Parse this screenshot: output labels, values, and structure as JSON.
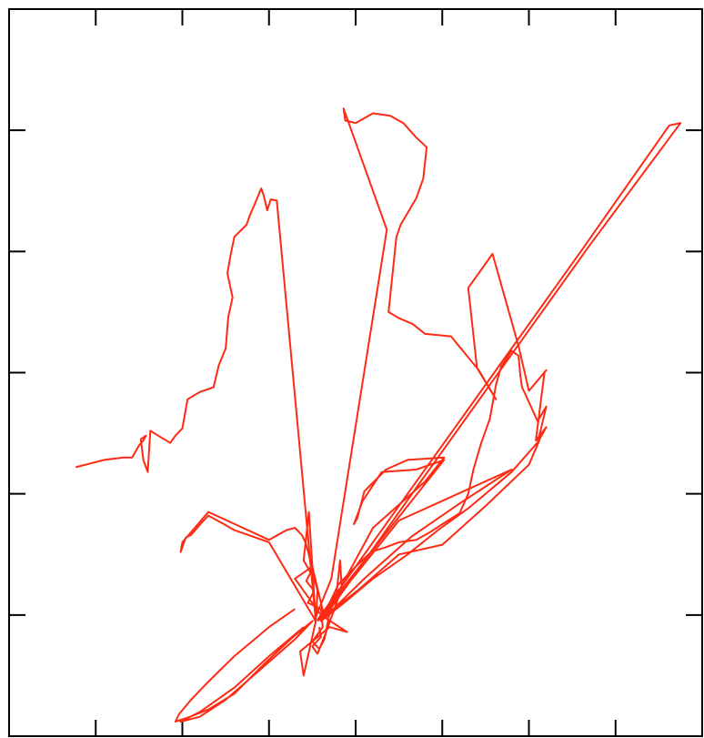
{
  "chart_data": {
    "type": "line",
    "title": "",
    "xlabel": "",
    "ylabel": "",
    "xlim": [
      0,
      8
    ],
    "ylim": [
      0,
      6
    ],
    "xticks": [
      1,
      2,
      3,
      4,
      5,
      6,
      7
    ],
    "yticks": [
      1,
      2,
      3,
      4,
      5
    ],
    "tick_labels_shown": false,
    "grid": false,
    "line_color": "#ff2a14",
    "series": [
      {
        "values_xy": [
          [
            0.77,
            2.22
          ],
          [
            1.1,
            2.28
          ],
          [
            1.32,
            2.3
          ],
          [
            1.42,
            2.3
          ],
          [
            1.5,
            2.4
          ],
          [
            1.55,
            2.44
          ],
          [
            1.58,
            2.48
          ],
          [
            1.52,
            2.45
          ],
          [
            1.55,
            2.28
          ],
          [
            1.6,
            2.18
          ],
          [
            1.63,
            2.52
          ],
          [
            1.72,
            2.48
          ],
          [
            1.86,
            2.42
          ],
          [
            1.92,
            2.48
          ],
          [
            2.0,
            2.54
          ],
          [
            2.06,
            2.78
          ],
          [
            2.2,
            2.84
          ],
          [
            2.36,
            2.88
          ],
          [
            2.42,
            3.06
          ],
          [
            2.5,
            3.2
          ],
          [
            2.53,
            3.46
          ],
          [
            2.58,
            3.62
          ],
          [
            2.52,
            3.82
          ],
          [
            2.56,
            3.98
          ],
          [
            2.6,
            4.12
          ],
          [
            2.74,
            4.22
          ],
          [
            2.78,
            4.3
          ],
          [
            2.84,
            4.4
          ],
          [
            2.91,
            4.52
          ],
          [
            2.94,
            4.46
          ],
          [
            2.98,
            4.34
          ],
          [
            3.02,
            4.43
          ],
          [
            3.09,
            4.42
          ],
          [
            3.54,
            0.95
          ]
        ]
      },
      {
        "values_xy": [
          [
            3.54,
            0.95
          ],
          [
            3.46,
            1.85
          ],
          [
            3.4,
            1.45
          ],
          [
            3.48,
            1.35
          ],
          [
            3.43,
            1.28
          ],
          [
            3.52,
            1.2
          ],
          [
            3.45,
            1.1
          ],
          [
            3.6,
            1.05
          ],
          [
            3.62,
            0.9
          ],
          [
            3.5,
            0.78
          ],
          [
            3.58,
            0.72
          ],
          [
            3.64,
            0.8
          ],
          [
            3.7,
            1.02
          ],
          [
            3.78,
            1.18
          ],
          [
            3.82,
            1.45
          ],
          [
            3.84,
            1.22
          ],
          [
            3.72,
            0.98
          ],
          [
            3.66,
            0.86
          ],
          [
            3.56,
            0.68
          ],
          [
            3.5,
            0.74
          ],
          [
            3.6,
            0.82
          ],
          [
            3.58,
            0.9
          ]
        ]
      },
      {
        "values_xy": [
          [
            3.3,
            1.05
          ],
          [
            3.0,
            0.9
          ],
          [
            2.6,
            0.66
          ],
          [
            2.3,
            0.45
          ],
          [
            2.1,
            0.3
          ],
          [
            1.96,
            0.18
          ],
          [
            1.92,
            0.12
          ],
          [
            2.05,
            0.15
          ],
          [
            2.3,
            0.22
          ],
          [
            2.6,
            0.35
          ],
          [
            2.95,
            0.6
          ],
          [
            3.28,
            0.82
          ],
          [
            3.5,
            0.95
          ],
          [
            3.3,
            0.8
          ],
          [
            2.9,
            0.55
          ],
          [
            2.5,
            0.3
          ],
          [
            2.2,
            0.16
          ],
          [
            1.98,
            0.12
          ],
          [
            2.2,
            0.2
          ],
          [
            2.6,
            0.4
          ],
          [
            3.0,
            0.66
          ],
          [
            3.4,
            0.9
          ]
        ]
      },
      {
        "values_xy": [
          [
            3.6,
            0.95
          ],
          [
            3.8,
            1.25
          ],
          [
            4.0,
            1.4
          ],
          [
            4.18,
            1.52
          ],
          [
            4.35,
            1.56
          ],
          [
            4.5,
            1.6
          ],
          [
            4.7,
            1.62
          ],
          [
            4.85,
            1.68
          ],
          [
            5.0,
            1.75
          ],
          [
            5.2,
            1.84
          ],
          [
            5.3,
            2.0
          ],
          [
            5.36,
            2.2
          ],
          [
            5.45,
            2.42
          ],
          [
            5.55,
            2.62
          ],
          [
            5.62,
            2.9
          ],
          [
            5.68,
            3.05
          ],
          [
            5.8,
            3.18
          ],
          [
            5.88,
            3.14
          ],
          [
            5.9,
            2.98
          ],
          [
            5.92,
            2.88
          ],
          [
            5.96,
            2.82
          ],
          [
            6.1,
            2.6
          ],
          [
            6.2,
            2.72
          ],
          [
            6.1,
            2.42
          ],
          [
            6.2,
            2.55
          ],
          [
            6.08,
            2.44
          ],
          [
            6.18,
            3.0
          ],
          [
            6.2,
            3.02
          ],
          [
            6.0,
            2.85
          ],
          [
            5.88,
            3.22
          ],
          [
            5.58,
            3.98
          ],
          [
            5.3,
            3.7
          ],
          [
            5.4,
            3.04
          ],
          [
            5.62,
            2.78
          ],
          [
            5.42,
            3.02
          ],
          [
            5.1,
            3.3
          ],
          [
            4.8,
            3.32
          ],
          [
            4.66,
            3.4
          ],
          [
            4.5,
            3.45
          ],
          [
            4.38,
            3.5
          ],
          [
            4.47,
            4.12
          ],
          [
            4.52,
            4.22
          ],
          [
            4.7,
            4.44
          ],
          [
            4.78,
            4.6
          ],
          [
            4.82,
            4.86
          ],
          [
            4.7,
            4.94
          ],
          [
            4.55,
            5.06
          ],
          [
            4.4,
            5.12
          ],
          [
            4.2,
            5.14
          ],
          [
            4.0,
            5.06
          ],
          [
            3.88,
            5.08
          ],
          [
            3.86,
            5.18
          ],
          [
            4.36,
            4.18
          ],
          [
            3.72,
            1.3
          ],
          [
            3.52,
            0.95
          ]
        ]
      },
      {
        "values_xy": [
          [
            3.56,
            0.95
          ],
          [
            4.02,
            1.2
          ],
          [
            4.5,
            1.5
          ],
          [
            5.0,
            1.58
          ],
          [
            5.5,
            1.9
          ],
          [
            6.0,
            2.24
          ],
          [
            6.12,
            2.44
          ],
          [
            5.8,
            2.18
          ],
          [
            5.3,
            1.88
          ],
          [
            4.95,
            1.7
          ],
          [
            4.6,
            1.5
          ],
          [
            4.2,
            1.3
          ],
          [
            3.9,
            1.12
          ],
          [
            3.6,
            0.95
          ],
          [
            4.1,
            1.3
          ],
          [
            4.65,
            1.65
          ],
          [
            5.2,
            1.92
          ],
          [
            5.8,
            2.2
          ],
          [
            4.5,
            1.78
          ],
          [
            3.58,
            0.96
          ]
        ]
      },
      {
        "values_xy": [
          [
            3.56,
            0.96
          ],
          [
            4.6,
            2.0
          ],
          [
            5.6,
            3.0
          ],
          [
            6.6,
            4.0
          ],
          [
            7.62,
            5.04
          ],
          [
            7.75,
            5.06
          ],
          [
            6.7,
            4.05
          ],
          [
            5.7,
            3.05
          ],
          [
            4.7,
            2.05
          ],
          [
            3.64,
            0.98
          ],
          [
            4.2,
            1.72
          ],
          [
            4.8,
            2.1
          ],
          [
            5.02,
            2.3
          ],
          [
            4.6,
            2.28
          ],
          [
            4.35,
            2.2
          ],
          [
            4.1,
            2.02
          ],
          [
            4.02,
            1.8
          ],
          [
            3.98,
            1.75
          ],
          [
            4.08,
            1.94
          ],
          [
            4.3,
            2.18
          ],
          [
            4.7,
            2.2
          ],
          [
            5.02,
            2.28
          ],
          [
            3.56,
            0.96
          ]
        ]
      },
      {
        "values_xy": [
          [
            3.54,
            0.95
          ],
          [
            3.0,
            1.6
          ],
          [
            2.6,
            1.7
          ],
          [
            2.48,
            1.75
          ],
          [
            2.3,
            1.82
          ],
          [
            2.22,
            1.76
          ],
          [
            2.1,
            1.66
          ],
          [
            2.04,
            1.64
          ],
          [
            1.98,
            1.52
          ],
          [
            2.0,
            1.6
          ],
          [
            2.3,
            1.85
          ],
          [
            3.0,
            1.62
          ],
          [
            3.2,
            1.7
          ],
          [
            3.3,
            1.72
          ],
          [
            3.38,
            1.66
          ],
          [
            3.42,
            1.6
          ],
          [
            3.46,
            1.5
          ],
          [
            3.5,
            1.36
          ],
          [
            3.56,
            1.2
          ],
          [
            3.54,
            0.95
          ],
          [
            3.4,
            0.5
          ],
          [
            3.36,
            0.7
          ],
          [
            3.7,
            0.9
          ],
          [
            3.9,
            0.86
          ],
          [
            3.6,
            1.0
          ],
          [
            3.3,
            1.3
          ],
          [
            3.5,
            1.4
          ],
          [
            3.64,
            0.98
          ]
        ]
      }
    ]
  }
}
